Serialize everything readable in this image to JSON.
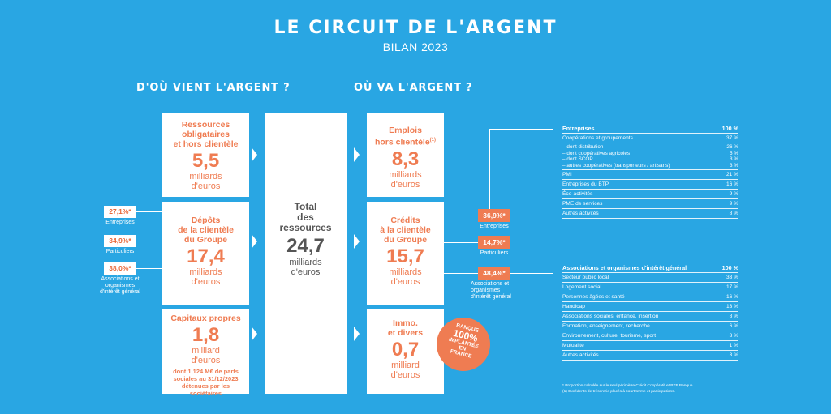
{
  "title": "LE CIRCUIT DE L'ARGENT",
  "subtitle": "BILAN 2023",
  "left_heading": "D'OÙ VIENT L'ARGENT ?",
  "right_heading": "OÙ VA L'ARGENT ?",
  "sources": [
    {
      "title_lines": [
        "Ressources",
        "obligataires",
        "et hors clientèle"
      ],
      "value": "5,5",
      "unit_lines": [
        "milliards",
        "d'euros"
      ]
    },
    {
      "title_lines": [
        "Dépôts",
        "de la clientèle",
        "du Groupe"
      ],
      "value": "17,4",
      "unit_lines": [
        "milliards",
        "d'euros"
      ]
    },
    {
      "title_lines": [
        "Capitaux propres"
      ],
      "value": "1,8",
      "unit_lines": [
        "milliard",
        "d'euros"
      ],
      "note_lines": [
        "dont 1,124 M€ de parts",
        "sociales au 31/12/2023",
        "détenues par les",
        "sociétaires"
      ]
    }
  ],
  "deposit_breakdown": [
    {
      "pct": "27,1%*",
      "label_lines": [
        "Entreprises"
      ]
    },
    {
      "pct": "34,9%*",
      "label_lines": [
        "Particuliers"
      ]
    },
    {
      "pct": "38,0%*",
      "label_lines": [
        "Associations et",
        "organismes",
        "d'intérêt général"
      ]
    }
  ],
  "total": {
    "title_lines": [
      "Total",
      "des",
      "ressources"
    ],
    "value": "24,7",
    "unit_lines": [
      "milliards",
      "d'euros"
    ]
  },
  "uses": [
    {
      "title_lines": [
        "Emplois",
        "hors clientèle"
      ],
      "sup": "(1)",
      "value": "8,3",
      "unit_lines": [
        "milliards",
        "d'euros"
      ]
    },
    {
      "title_lines": [
        "Crédits",
        "à la clientèle",
        "du Groupe"
      ],
      "value": "15,7",
      "unit_lines": [
        "milliards",
        "d'euros"
      ]
    },
    {
      "title_lines": [
        "Immo.",
        "et divers"
      ],
      "value": "0,7",
      "unit_lines": [
        "milliard",
        "d'euros"
      ]
    }
  ],
  "credit_breakdown": [
    {
      "pct": "36,9%*",
      "label_lines": [
        "Entreprises"
      ]
    },
    {
      "pct": "14,7%*",
      "label_lines": [
        "Particuliers"
      ]
    },
    {
      "pct": "48,4%*",
      "label_lines": [
        "Associations et",
        "organismes",
        "d'intérêt général"
      ]
    }
  ],
  "badge_lines": [
    "BANQUE",
    "100%",
    "IMPLANTÉE",
    "EN",
    "FRANCE"
  ],
  "table_entreprises": {
    "header": {
      "label": "Entreprises",
      "value": "100 %"
    },
    "rows_before": [
      {
        "label": "Coopérations et groupements",
        "value": "37 %"
      }
    ],
    "sub_rows": [
      {
        "label": "– dont distribution",
        "value": "26 %"
      },
      {
        "label": "– dont coopératives agricoles",
        "value": "5 %"
      },
      {
        "label": "– dont SCOP",
        "value": "3 %"
      },
      {
        "label": "– autres coopératives (transporteurs / artisans)",
        "value": "3 %"
      }
    ],
    "rows_after": [
      {
        "label": "PMI",
        "value": "21 %"
      },
      {
        "label": "Entreprises du BTP",
        "value": "16 %"
      },
      {
        "label": "Éco-activités",
        "value": "9 %"
      },
      {
        "label": "PME de services",
        "value": "9 %"
      },
      {
        "label": "Autres activités",
        "value": "8 %"
      }
    ]
  },
  "table_associations": {
    "header": {
      "label": "Associations et organismes d'intérêt général",
      "value": "100 %"
    },
    "rows": [
      {
        "label": "Secteur public local",
        "value": "33 %"
      },
      {
        "label": "Logement social",
        "value": "17 %"
      },
      {
        "label": "Personnes âgées et santé",
        "value": "16 %"
      },
      {
        "label": "Handicap",
        "value": "13 %"
      },
      {
        "label": "Associations sociales, enfance, insertion",
        "value": "8 %"
      },
      {
        "label": "Formation, enseignement, recherche",
        "value": "6 %"
      },
      {
        "label": "Environnement, culture, tourisme, sport",
        "value": "3 %"
      },
      {
        "label": "Mutualité",
        "value": "1 %"
      },
      {
        "label": "Autres activités",
        "value": "3 %"
      }
    ]
  },
  "footnotes": [
    "* Proportion calculée sur le seul périmètre Crédit Coopératif et BTP Banque.",
    "(1) Excédents de trésorerie placés à court terme et participations."
  ],
  "colors": {
    "background": "#29a6e3",
    "accent": "#ef7c52",
    "box": "#ffffff"
  }
}
